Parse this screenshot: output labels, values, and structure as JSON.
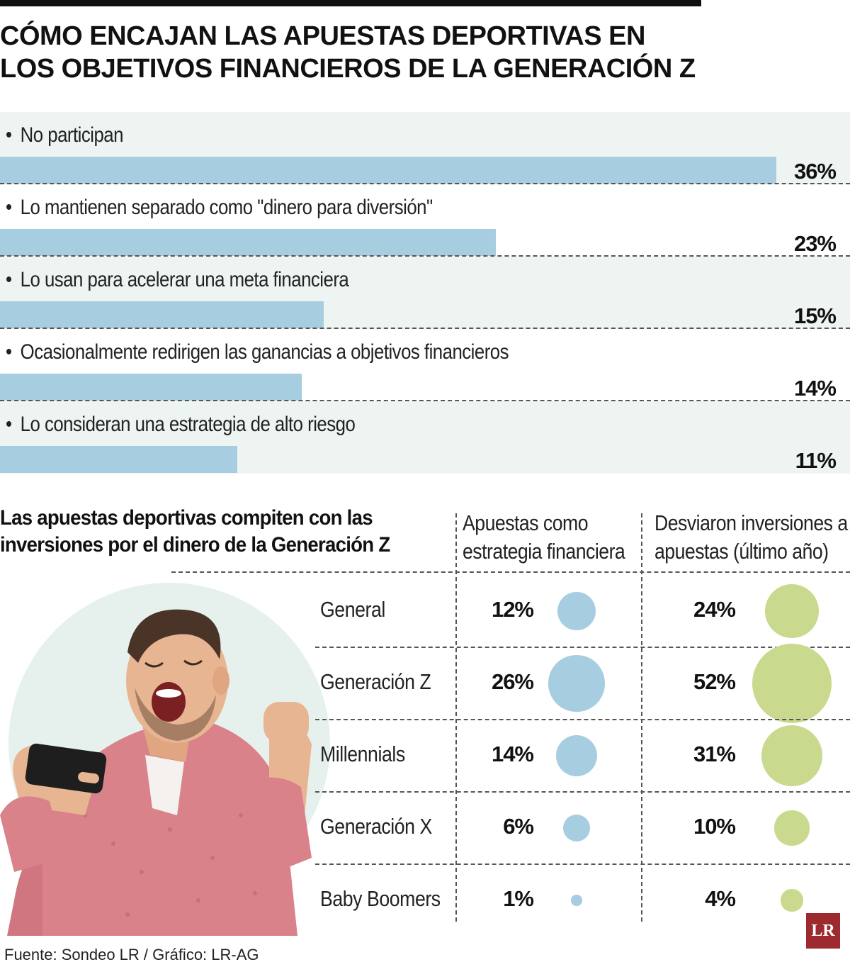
{
  "title_lines": [
    "CÓMO ENCAJAN LAS APUESTAS DEPORTIVAS EN",
    "LOS OBJETIVOS FINANCIEROS DE LA GENERACIÓN Z"
  ],
  "colors": {
    "bar": "#a7cde0",
    "bubble_blue": "#a7cde0",
    "bubble_green": "#c9d98d",
    "shade": "#eef4f1",
    "logo": "#9c2a2e"
  },
  "chart_data": [
    {
      "type": "bar",
      "orientation": "horizontal",
      "categories": [
        "No participan",
        "Lo mantienen separado como \"dinero para diversión\"",
        "Lo usan para acelerar una meta financiera",
        "Ocasionalmente redirigen las ganancias a objetivos financieros",
        "Lo consideran una estrategia de alto riesgo"
      ],
      "values": [
        36,
        23,
        15,
        14,
        11
      ],
      "value_labels": [
        "36%",
        "23%",
        "15%",
        "14%",
        "11%"
      ],
      "bullet": "•"
    },
    {
      "type": "table",
      "title": "Las apuestas deportivas compiten con las inversiones por el dinero de la Generación Z",
      "title_lines": [
        "Las apuestas deportivas compiten con las",
        "inversiones por el dinero de la Generación Z"
      ],
      "columns": [
        {
          "name_lines": [
            "Apuestas como",
            "estrategia financiera"
          ],
          "color": "#a7cde0"
        },
        {
          "name_lines": [
            "Desviaron inversiones a",
            "apuestas (último año)"
          ],
          "color": "#c9d98d"
        }
      ],
      "rows": [
        "General",
        "Generación Z",
        "Millennials",
        "Generación X",
        "Baby Boomers"
      ],
      "series": [
        {
          "values": [
            12,
            26,
            14,
            6,
            1
          ],
          "labels": [
            "12%",
            "26%",
            "14%",
            "6%",
            "1%"
          ]
        },
        {
          "values": [
            24,
            52,
            31,
            10,
            4
          ],
          "labels": [
            "24%",
            "52%",
            "31%",
            "10%",
            "4%"
          ]
        }
      ]
    }
  ],
  "source": "Fuente: Sondeo LR / Gráfico: LR-AG",
  "logo_text": "LR"
}
